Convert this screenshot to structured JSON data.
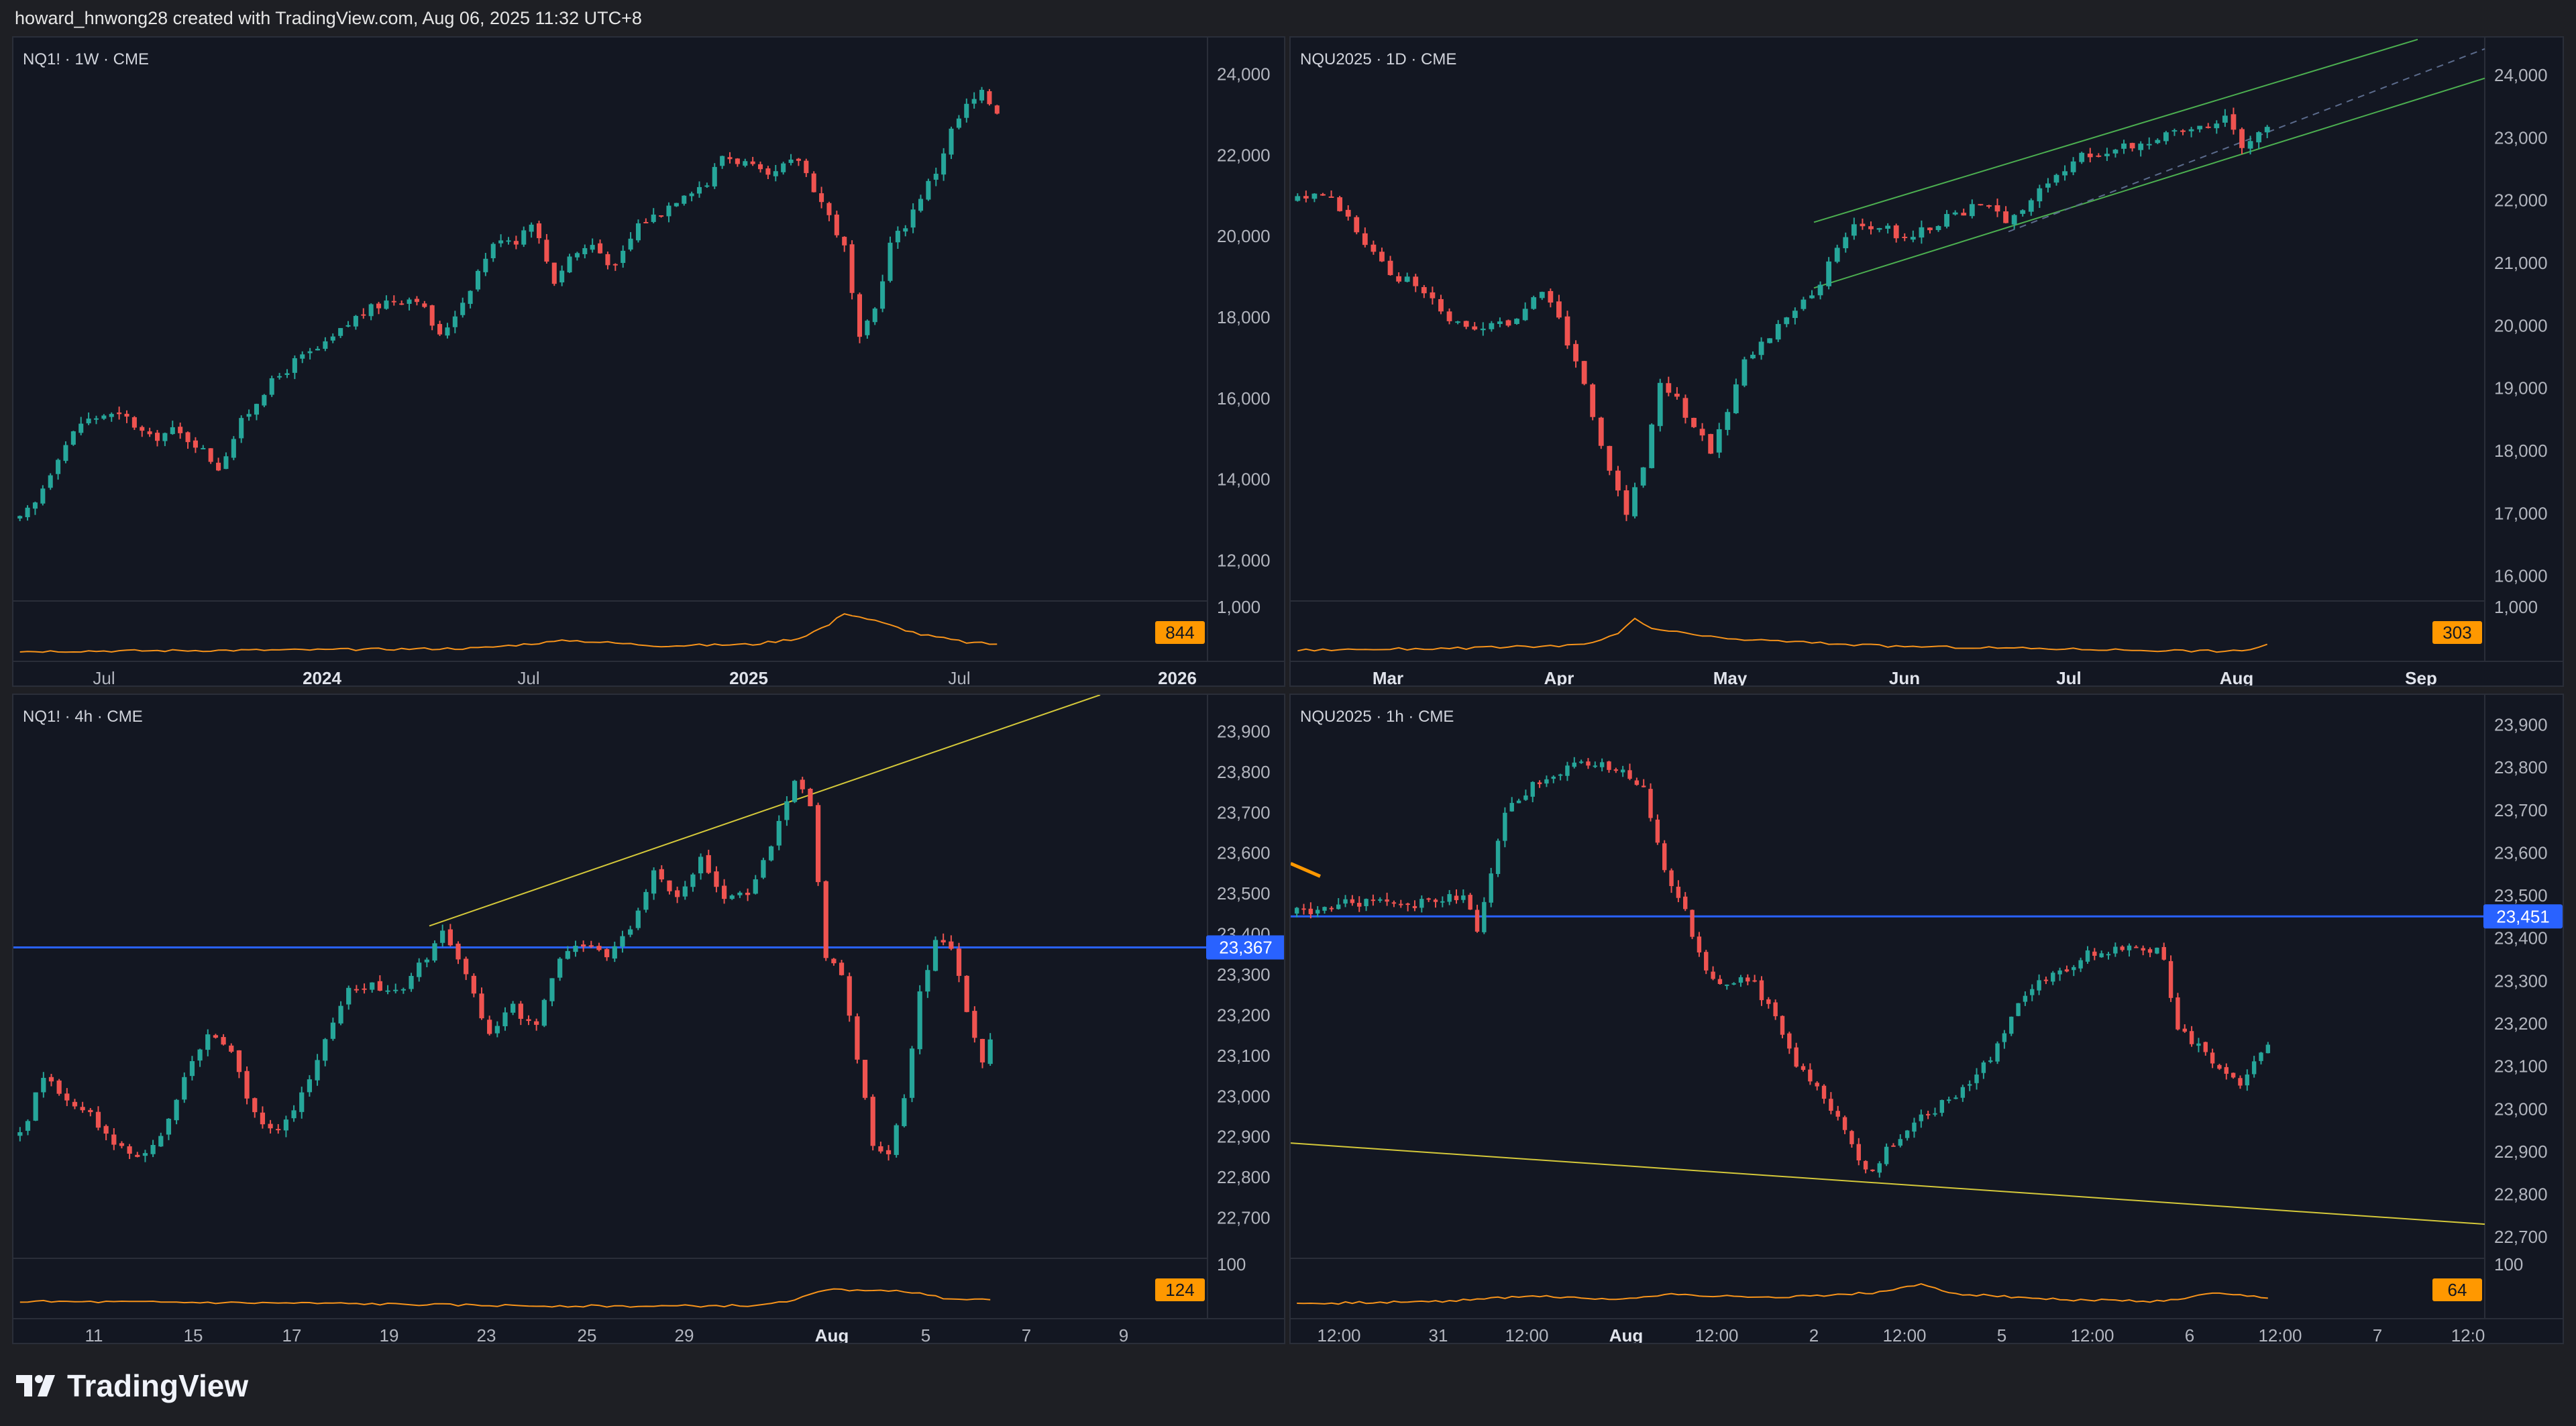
{
  "header": {
    "attribution": "howard_hnwong28 created with TradingView.com, Aug 06, 2025 11:32 UTC+8"
  },
  "footer": {
    "brand": "TradingView"
  },
  "colors": {
    "up": "#26a69a",
    "down": "#ef5350",
    "volume": "#f7931a",
    "channel": "#4caf50",
    "trend": "#d4c83a",
    "level": "#2962ff",
    "badge_volume": "#ff9800",
    "badge_level": "#2962ff"
  },
  "chart_data": [
    {
      "type": "candlestick",
      "title": "NQ1! · 1W · CME",
      "ylim": [
        11000,
        24900
      ],
      "y_ticks": [
        "24,000",
        "22,000",
        "20,000",
        "18,000",
        "16,000",
        "14,000",
        "12,000"
      ],
      "y_tick_values": [
        24000,
        22000,
        20000,
        18000,
        16000,
        14000,
        12000
      ],
      "x_ticks": [
        "Jul",
        "2024",
        "Jul",
        "2025",
        "Jul",
        "2026"
      ],
      "bold_x_ticks": [
        "2024",
        "2025",
        "2026"
      ],
      "volume_badge": "844",
      "volume_axis_label": "1,000",
      "overlays": [],
      "close_path": [
        [
          0,
          13000
        ],
        [
          2,
          13400
        ],
        [
          5,
          14600
        ],
        [
          8,
          15400
        ],
        [
          11,
          15600
        ],
        [
          14,
          15500
        ],
        [
          17,
          15000
        ],
        [
          20,
          15200
        ],
        [
          23,
          14900
        ],
        [
          26,
          14300
        ],
        [
          29,
          15400
        ],
        [
          32,
          16200
        ],
        [
          36,
          16900
        ],
        [
          40,
          17300
        ],
        [
          44,
          18000
        ],
        [
          48,
          18400
        ],
        [
          52,
          18500
        ],
        [
          55,
          17500
        ],
        [
          58,
          18400
        ],
        [
          61,
          19500
        ],
        [
          63,
          20000
        ],
        [
          65,
          19900
        ],
        [
          67,
          20400
        ],
        [
          70,
          18900
        ],
        [
          72,
          19500
        ],
        [
          75,
          19800
        ],
        [
          78,
          19200
        ],
        [
          81,
          20300
        ],
        [
          84,
          20600
        ],
        [
          87,
          21100
        ],
        [
          90,
          21300
        ],
        [
          92,
          22000
        ],
        [
          95,
          21800
        ],
        [
          98,
          21400
        ],
        [
          100,
          21700
        ],
        [
          102,
          21900
        ],
        [
          104,
          21200
        ],
        [
          106,
          20500
        ],
        [
          108,
          19700
        ],
        [
          110,
          17400
        ],
        [
          112,
          18200
        ],
        [
          114,
          19800
        ],
        [
          116,
          20300
        ],
        [
          118,
          21000
        ],
        [
          120,
          21600
        ],
        [
          122,
          22600
        ],
        [
          124,
          23200
        ],
        [
          126,
          23500
        ],
        [
          128,
          23100
        ]
      ],
      "candle_count": 129,
      "volume_path": [
        [
          0,
          12
        ],
        [
          40,
          16
        ],
        [
          60,
          20
        ],
        [
          72,
          40
        ],
        [
          84,
          26
        ],
        [
          96,
          30
        ],
        [
          102,
          45
        ],
        [
          106,
          80
        ],
        [
          108,
          110
        ],
        [
          112,
          90
        ],
        [
          118,
          55
        ],
        [
          124,
          35
        ],
        [
          128,
          30
        ]
      ]
    },
    {
      "type": "candlestick",
      "title": "NQU2025 · 1D · CME",
      "ylim": [
        15600,
        24600
      ],
      "y_ticks": [
        "24,000",
        "23,000",
        "22,000",
        "21,000",
        "20,000",
        "19,000",
        "18,000",
        "17,000",
        "16,000"
      ],
      "y_tick_values": [
        24000,
        23000,
        22000,
        21000,
        20000,
        19000,
        18000,
        17000,
        16000
      ],
      "x_ticks": [
        "Mar",
        "Apr",
        "May",
        "Jun",
        "Jul",
        "Aug",
        "Sep"
      ],
      "bold_x_ticks": [
        "Mar",
        "Apr",
        "May",
        "Jun",
        "Jul",
        "Aug",
        "Sep"
      ],
      "volume_badge": "303",
      "volume_axis_label": "1,000",
      "overlays": [
        "ascending-channel",
        "channel-midline"
      ],
      "close_path": [
        [
          0,
          22000
        ],
        [
          3,
          22100
        ],
        [
          5,
          21900
        ],
        [
          8,
          21300
        ],
        [
          11,
          20800
        ],
        [
          14,
          20700
        ],
        [
          17,
          20200
        ],
        [
          20,
          19900
        ],
        [
          23,
          20000
        ],
        [
          26,
          20100
        ],
        [
          29,
          20600
        ],
        [
          31,
          20100
        ],
        [
          33,
          19400
        ],
        [
          35,
          18600
        ],
        [
          37,
          17600
        ],
        [
          39,
          17000
        ],
        [
          41,
          17800
        ],
        [
          43,
          19100
        ],
        [
          45,
          18800
        ],
        [
          47,
          18400
        ],
        [
          49,
          18000
        ],
        [
          51,
          18600
        ],
        [
          53,
          19500
        ],
        [
          56,
          19800
        ],
        [
          59,
          20300
        ],
        [
          62,
          20600
        ],
        [
          64,
          21300
        ],
        [
          66,
          21600
        ],
        [
          69,
          21600
        ],
        [
          72,
          21400
        ],
        [
          75,
          21600
        ],
        [
          78,
          21800
        ],
        [
          81,
          21900
        ],
        [
          84,
          21700
        ],
        [
          87,
          22000
        ],
        [
          90,
          22400
        ],
        [
          93,
          22700
        ],
        [
          96,
          22800
        ],
        [
          99,
          22900
        ],
        [
          102,
          23000
        ],
        [
          105,
          23100
        ],
        [
          108,
          23200
        ],
        [
          110,
          23400
        ],
        [
          112,
          22900
        ],
        [
          114,
          23100
        ],
        [
          115,
          23200
        ]
      ],
      "candle_count": 116,
      "volume_path": [
        [
          0,
          15
        ],
        [
          20,
          20
        ],
        [
          34,
          28
        ],
        [
          38,
          55
        ],
        [
          40,
          95
        ],
        [
          42,
          70
        ],
        [
          50,
          45
        ],
        [
          70,
          25
        ],
        [
          100,
          15
        ],
        [
          112,
          12
        ],
        [
          115,
          30
        ]
      ]
    },
    {
      "type": "candlestick",
      "title": "NQ1! · 4h · CME",
      "ylim": [
        22600,
        23990
      ],
      "y_ticks": [
        "23,900",
        "23,800",
        "23,700",
        "23,600",
        "23,500",
        "23,400",
        "23,300",
        "23,200",
        "23,100",
        "23,000",
        "22,900",
        "22,800",
        "22,700"
      ],
      "y_tick_values": [
        23900,
        23800,
        23700,
        23600,
        23500,
        23400,
        23300,
        23200,
        23100,
        23000,
        22900,
        22800,
        22700
      ],
      "x_ticks": [
        "11",
        "15",
        "17",
        "19",
        "23",
        "25",
        "29",
        "Aug",
        "5",
        "7",
        "9"
      ],
      "bold_x_ticks": [
        "Aug"
      ],
      "volume_badge": "124",
      "volume_axis_label": "100",
      "level_badge": "23,367",
      "level_value": 23367,
      "overlays": [
        "horizontal-level",
        "rising-trendline"
      ],
      "close_path": [
        [
          0,
          22900
        ],
        [
          3,
          23050
        ],
        [
          6,
          23000
        ],
        [
          9,
          22950
        ],
        [
          12,
          22880
        ],
        [
          15,
          22850
        ],
        [
          18,
          22900
        ],
        [
          21,
          23050
        ],
        [
          24,
          23150
        ],
        [
          27,
          23100
        ],
        [
          30,
          22950
        ],
        [
          33,
          22920
        ],
        [
          36,
          23000
        ],
        [
          39,
          23150
        ],
        [
          42,
          23260
        ],
        [
          45,
          23280
        ],
        [
          48,
          23250
        ],
        [
          51,
          23320
        ],
        [
          54,
          23400
        ],
        [
          57,
          23300
        ],
        [
          60,
          23150
        ],
        [
          63,
          23220
        ],
        [
          66,
          23170
        ],
        [
          69,
          23350
        ],
        [
          72,
          23370
        ],
        [
          75,
          23340
        ],
        [
          78,
          23420
        ],
        [
          81,
          23550
        ],
        [
          84,
          23500
        ],
        [
          87,
          23580
        ],
        [
          90,
          23480
        ],
        [
          93,
          23500
        ],
        [
          96,
          23620
        ],
        [
          99,
          23780
        ],
        [
          101,
          23720
        ],
        [
          103,
          23350
        ],
        [
          105,
          23300
        ],
        [
          107,
          23100
        ],
        [
          109,
          22880
        ],
        [
          111,
          22850
        ],
        [
          113,
          23000
        ],
        [
          115,
          23250
        ],
        [
          117,
          23380
        ],
        [
          119,
          23370
        ],
        [
          121,
          23200
        ],
        [
          123,
          23080
        ],
        [
          124,
          23130
        ]
      ],
      "candle_count": 125,
      "volume_path": [
        [
          0,
          30
        ],
        [
          20,
          28
        ],
        [
          40,
          25
        ],
        [
          60,
          20
        ],
        [
          80,
          18
        ],
        [
          95,
          20
        ],
        [
          100,
          40
        ],
        [
          104,
          65
        ],
        [
          108,
          55
        ],
        [
          112,
          60
        ],
        [
          118,
          40
        ],
        [
          124,
          35
        ]
      ]
    },
    {
      "type": "candlestick",
      "title": "NQU2025 · 1h · CME",
      "ylim": [
        22650,
        23970
      ],
      "y_ticks": [
        "23,900",
        "23,800",
        "23,700",
        "23,600",
        "23,500",
        "23,400",
        "23,300",
        "23,200",
        "23,100",
        "23,000",
        "22,900",
        "22,800",
        "22,700"
      ],
      "y_tick_values": [
        23900,
        23800,
        23700,
        23600,
        23500,
        23400,
        23300,
        23200,
        23100,
        23000,
        22900,
        22800,
        22700
      ],
      "x_ticks": [
        "12:00",
        "31",
        "12:00",
        "Aug",
        "12:00",
        "2",
        "12:00",
        "5",
        "12:00",
        "6",
        "12:00",
        "7",
        "12:0"
      ],
      "bold_x_ticks": [
        "Aug"
      ],
      "volume_badge": "64",
      "volume_axis_label": "100",
      "level_badge": "23,451",
      "level_value": 23451,
      "overlays": [
        "horizontal-level",
        "descending-trendline",
        "short-orange-segment"
      ],
      "close_path": [
        [
          0,
          23460
        ],
        [
          5,
          23480
        ],
        [
          10,
          23485
        ],
        [
          15,
          23475
        ],
        [
          20,
          23490
        ],
        [
          24,
          23500
        ],
        [
          26,
          23420
        ],
        [
          28,
          23560
        ],
        [
          30,
          23700
        ],
        [
          34,
          23760
        ],
        [
          38,
          23790
        ],
        [
          42,
          23810
        ],
        [
          46,
          23800
        ],
        [
          50,
          23760
        ],
        [
          52,
          23620
        ],
        [
          54,
          23520
        ],
        [
          56,
          23460
        ],
        [
          58,
          23360
        ],
        [
          60,
          23300
        ],
        [
          62,
          23280
        ],
        [
          64,
          23300
        ],
        [
          66,
          23290
        ],
        [
          70,
          23180
        ],
        [
          72,
          23100
        ],
        [
          75,
          23060
        ],
        [
          77,
          23000
        ],
        [
          79,
          22950
        ],
        [
          81,
          22870
        ],
        [
          83,
          22860
        ],
        [
          85,
          22900
        ],
        [
          88,
          22950
        ],
        [
          92,
          23000
        ],
        [
          96,
          23050
        ],
        [
          100,
          23120
        ],
        [
          104,
          23250
        ],
        [
          107,
          23300
        ],
        [
          110,
          23320
        ],
        [
          114,
          23360
        ],
        [
          118,
          23370
        ],
        [
          122,
          23380
        ],
        [
          125,
          23360
        ],
        [
          127,
          23180
        ],
        [
          130,
          23150
        ],
        [
          133,
          23100
        ],
        [
          136,
          23060
        ],
        [
          138,
          23120
        ],
        [
          140,
          23150
        ]
      ],
      "candle_count": 141,
      "volume_path": [
        [
          0,
          25
        ],
        [
          20,
          30
        ],
        [
          34,
          45
        ],
        [
          45,
          35
        ],
        [
          55,
          50
        ],
        [
          65,
          40
        ],
        [
          75,
          45
        ],
        [
          85,
          55
        ],
        [
          90,
          75
        ],
        [
          95,
          50
        ],
        [
          110,
          35
        ],
        [
          125,
          30
        ],
        [
          132,
          50
        ],
        [
          140,
          40
        ]
      ]
    }
  ]
}
